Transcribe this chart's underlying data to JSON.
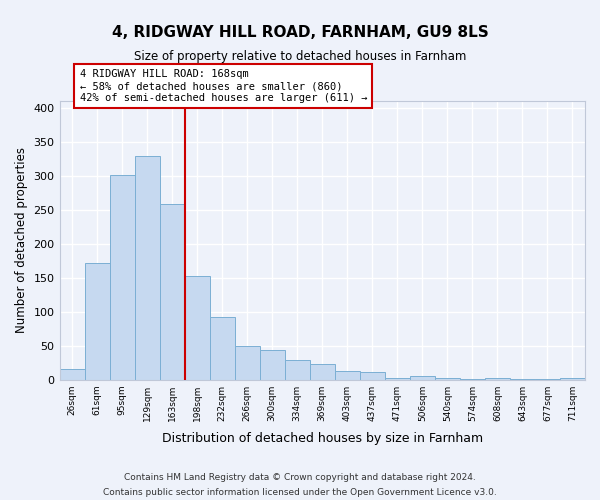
{
  "title": "4, RIDGWAY HILL ROAD, FARNHAM, GU9 8LS",
  "subtitle": "Size of property relative to detached houses in Farnham",
  "xlabel": "Distribution of detached houses by size in Farnham",
  "ylabel": "Number of detached properties",
  "bin_labels": [
    "26sqm",
    "61sqm",
    "95sqm",
    "129sqm",
    "163sqm",
    "198sqm",
    "232sqm",
    "266sqm",
    "300sqm",
    "334sqm",
    "369sqm",
    "403sqm",
    "437sqm",
    "471sqm",
    "506sqm",
    "540sqm",
    "574sqm",
    "608sqm",
    "643sqm",
    "677sqm",
    "711sqm"
  ],
  "bar_heights": [
    15,
    172,
    301,
    330,
    259,
    153,
    92,
    50,
    43,
    29,
    23,
    13,
    11,
    3,
    5,
    2,
    1,
    2,
    1,
    1,
    2
  ],
  "bar_color": "#c6d9f0",
  "bar_edge_color": "#7bafd4",
  "highlight_line_color": "#cc0000",
  "annotation_text": "4 RIDGWAY HILL ROAD: 168sqm\n← 58% of detached houses are smaller (860)\n42% of semi-detached houses are larger (611) →",
  "annotation_box_facecolor": "#ffffff",
  "annotation_box_edgecolor": "#cc0000",
  "ylim": [
    0,
    410
  ],
  "yticks": [
    0,
    50,
    100,
    150,
    200,
    250,
    300,
    350,
    400
  ],
  "footer_line1": "Contains HM Land Registry data © Crown copyright and database right 2024.",
  "footer_line2": "Contains public sector information licensed under the Open Government Licence v3.0.",
  "bg_color": "#eef2fa",
  "plot_bg_color": "#eef2fa",
  "grid_color": "#ffffff",
  "spine_color": "#c0c8d8"
}
